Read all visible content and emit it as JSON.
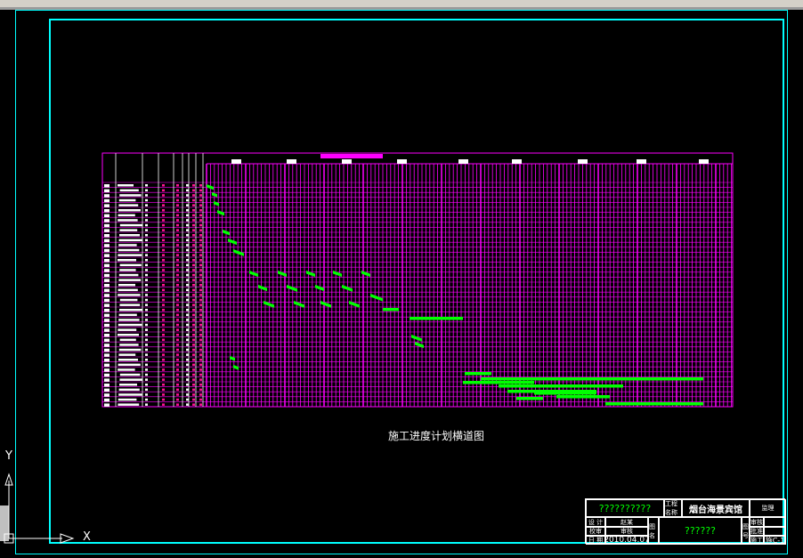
{
  "drawing_title": "施工进度计划横道图",
  "title_block": {
    "company": "??????????",
    "project_label": "工程名称",
    "project_name": "烟台海景宾馆",
    "supervise_label": "监理",
    "design_label": "设 计",
    "design_value": "赵某",
    "check_label": "校审",
    "check_value": "审核",
    "date_label": "日 期",
    "date_value": "2010.04.07",
    "drawing_name_label": "图名",
    "drawing_name": "??????",
    "no_label": "图号",
    "review_label": "审核",
    "approve_label": "批准",
    "stage_label": "施工",
    "drawing_no": "施C-1"
  },
  "ucs": {
    "x_label": "X",
    "y_label": "Y"
  },
  "colors": {
    "frame": "#00ffff",
    "grid": "#ff00ff",
    "bars": "#00ff00",
    "text": "#ffffff"
  }
}
